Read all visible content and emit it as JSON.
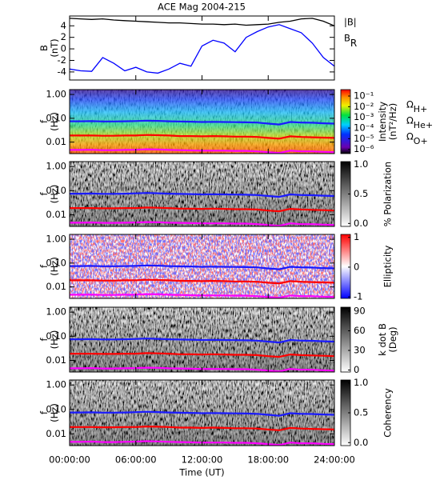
{
  "chart_data": [
    {
      "type": "line",
      "title": "ACE Mag 2004-215",
      "y_label": [
        "B",
        "(nT)"
      ],
      "xlim": [
        0,
        24
      ],
      "x": [
        0,
        1,
        2,
        3,
        4,
        5,
        6,
        7,
        8,
        9,
        10,
        11,
        12,
        13,
        14,
        15,
        16,
        17,
        18,
        19,
        20,
        21,
        22,
        23,
        24
      ],
      "ylim": [
        -5.4,
        5.7
      ],
      "yticks": [
        -4,
        -2,
        0,
        2,
        4
      ],
      "series": [
        {
          "name": "|B|",
          "color": "#000000",
          "values": [
            5.3,
            5.2,
            5.1,
            5.2,
            5.0,
            4.9,
            4.8,
            4.7,
            4.6,
            4.5,
            4.5,
            4.4,
            4.3,
            4.3,
            4.2,
            4.3,
            4.1,
            4.2,
            4.3,
            4.6,
            4.8,
            5.2,
            5.3,
            4.8,
            4.0
          ]
        },
        {
          "name": "BR",
          "color": "#0000ff",
          "values": [
            -3.5,
            -3.8,
            -3.9,
            -1.5,
            -2.5,
            -3.8,
            -3.2,
            -4.0,
            -4.2,
            -3.5,
            -2.5,
            -3.0,
            0.5,
            1.5,
            1.0,
            -0.5,
            2.0,
            3.0,
            3.8,
            4.2,
            3.5,
            2.8,
            1.0,
            -1.5,
            -3.0
          ]
        }
      ]
    },
    {
      "type": "spectrogram",
      "y_label": [
        "f",
        "(Hz)"
      ],
      "log_y": true,
      "colormap": "rainbow",
      "xlim": [
        0,
        24
      ],
      "x": [
        0,
        1,
        2,
        3,
        4,
        5,
        6,
        7,
        8,
        9,
        10,
        11,
        12,
        13,
        14,
        15,
        16,
        17,
        18,
        19,
        20,
        21,
        22,
        23,
        24
      ],
      "ylim": [
        0.0033,
        1.6
      ],
      "yticks": [
        {
          "value": 0.01,
          "label": "0.01"
        },
        {
          "value": 0.1,
          "label": "0.10"
        },
        {
          "value": 1,
          "label": "1.00"
        }
      ],
      "colorbar": {
        "label": [
          "Intensity",
          "(nT²/Hz)"
        ],
        "log": true,
        "lim": [
          4e-07,
          0.4
        ],
        "ticks": [
          {
            "value": 0.1,
            "label": "10⁻¹"
          },
          {
            "value": 0.01,
            "label": "10⁻²"
          },
          {
            "value": 0.001,
            "label": "10⁻³"
          },
          {
            "value": 0.0001,
            "label": "10⁻⁴"
          },
          {
            "value": 1e-05,
            "label": "10⁻⁵"
          },
          {
            "value": 1e-06,
            "label": "10⁻⁶"
          }
        ]
      },
      "series": [
        {
          "name": "ΩH+",
          "color": "#1a1aff",
          "values": [
            0.075,
            0.075,
            0.076,
            0.074,
            0.074,
            0.075,
            0.077,
            0.08,
            0.078,
            0.075,
            0.073,
            0.072,
            0.07,
            0.071,
            0.07,
            0.069,
            0.068,
            0.066,
            0.06,
            0.055,
            0.07,
            0.066,
            0.065,
            0.062,
            0.06
          ]
        },
        {
          "name": "ΩHe+",
          "color": "#ff0000",
          "values": [
            0.019,
            0.019,
            0.019,
            0.0185,
            0.0185,
            0.019,
            0.019,
            0.02,
            0.0195,
            0.019,
            0.018,
            0.018,
            0.0175,
            0.018,
            0.0175,
            0.017,
            0.017,
            0.0165,
            0.015,
            0.014,
            0.0175,
            0.0165,
            0.016,
            0.0155,
            0.015
          ]
        },
        {
          "name": "ΩO+",
          "color": "#ff00ff",
          "values": [
            0.0047,
            0.0047,
            0.0048,
            0.0046,
            0.0046,
            0.0047,
            0.0048,
            0.005,
            0.0049,
            0.0047,
            0.0046,
            0.0045,
            0.0044,
            0.0044,
            0.0044,
            0.0043,
            0.0043,
            0.0041,
            0.0038,
            0.0035,
            0.0044,
            0.0041,
            0.0041,
            0.0039,
            0.0038
          ]
        }
      ]
    },
    {
      "type": "spectrogram",
      "y_label": [
        "f",
        "(Hz)"
      ],
      "log_y": true,
      "colormap": "gray",
      "xlim": [
        0,
        24
      ],
      "ylim": [
        0.0033,
        1.6
      ],
      "yticks": [
        {
          "value": 0.01,
          "label": "0.01"
        },
        {
          "value": 0.1,
          "label": "0.10"
        },
        {
          "value": 1,
          "label": "1.00"
        }
      ],
      "colorbar": {
        "label": [
          "% Polarization"
        ],
        "log": false,
        "lim": [
          -0.05,
          1.05
        ],
        "ticks": [
          {
            "value": 0,
            "label": "0.0"
          },
          0.5,
          {
            "value": 1,
            "label": "1.0"
          }
        ]
      }
    },
    {
      "type": "spectrogram",
      "y_label": [
        "f",
        "(Hz)"
      ],
      "log_y": true,
      "colormap": "bwr",
      "xlim": [
        0,
        24
      ],
      "ylim": [
        0.0033,
        1.6
      ],
      "yticks": [
        {
          "value": 0.01,
          "label": "0.01"
        },
        {
          "value": 0.1,
          "label": "0.10"
        },
        {
          "value": 1,
          "label": "1.00"
        }
      ],
      "colorbar": {
        "label": [
          "Ellipticity"
        ],
        "log": false,
        "lim": [
          -1.05,
          1.1
        ],
        "ticks": [
          -1,
          0,
          1
        ]
      }
    },
    {
      "type": "spectrogram",
      "y_label": [
        "f",
        "(Hz)"
      ],
      "log_y": true,
      "colormap": "gray",
      "xlim": [
        0,
        24
      ],
      "ylim": [
        0.0033,
        1.6
      ],
      "yticks": [
        {
          "value": 0.01,
          "label": "0.01"
        },
        {
          "value": 0.1,
          "label": "0.10"
        },
        {
          "value": 1,
          "label": "1.00"
        }
      ],
      "colorbar": {
        "label": [
          "k dot B",
          "(Deg)"
        ],
        "log": false,
        "lim": [
          -3,
          96
        ],
        "ticks": [
          0,
          30,
          60,
          90
        ]
      }
    },
    {
      "type": "spectrogram",
      "y_label": [
        "f",
        "(Hz)"
      ],
      "log_y": true,
      "colormap": "gray",
      "xlim": [
        0,
        24
      ],
      "ylim": [
        0.0033,
        1.6
      ],
      "yticks": [
        {
          "value": 0.01,
          "label": "0.01"
        },
        {
          "value": 0.1,
          "label": "0.10"
        },
        {
          "value": 1,
          "label": "1.00"
        }
      ],
      "colorbar": {
        "label": [
          "Coherency"
        ],
        "log": false,
        "lim": [
          -0.05,
          1.05
        ],
        "ticks": [
          {
            "value": 0,
            "label": "0.0"
          },
          0.5,
          {
            "value": 1,
            "label": "1.0"
          }
        ]
      },
      "x_label": "Time (UT)",
      "xticks": [
        {
          "value": 0,
          "label": "00:00:00"
        },
        {
          "value": 6,
          "label": "06:00:00"
        },
        {
          "value": 12,
          "label": "12:00:00"
        },
        {
          "value": 18,
          "label": "18:00:00"
        },
        {
          "value": 24,
          "label": "24:00:00"
        }
      ]
    }
  ]
}
